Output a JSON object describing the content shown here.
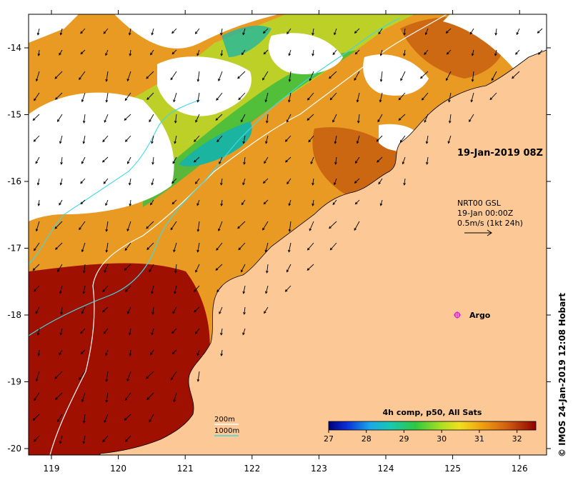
{
  "map": {
    "x_ticks": [
      "119",
      "120",
      "121",
      "122",
      "123",
      "124",
      "125",
      "126"
    ],
    "y_ticks": [
      "-14",
      "-15",
      "-16",
      "-17",
      "-18",
      "-19",
      "-20"
    ],
    "annotations": {
      "date_label": "19-Jan-2019 08Z",
      "current_lines": [
        "NRT00 GSL",
        "19-Jan 00:00Z",
        "0.5m/s (1kt 24h)"
      ],
      "argo_label": "Argo",
      "bathymetry_200": "200m",
      "bathymetry_1000": "1000m"
    },
    "colorbar": {
      "title": "4h comp, p50, All Sats",
      "ticks": [
        "27",
        "28",
        "29",
        "30",
        "31",
        "32"
      ],
      "range": [
        27,
        32.5
      ]
    },
    "credit": "© IMOS 24-Jan-2019 12:08 Hobart",
    "colors": {
      "land": "#fcc896",
      "bathy_200": "#ffffff",
      "bathy_1000": "#40d8e0",
      "argo": "#e020e0"
    },
    "arrow_icon": "current-vector-arrow"
  }
}
